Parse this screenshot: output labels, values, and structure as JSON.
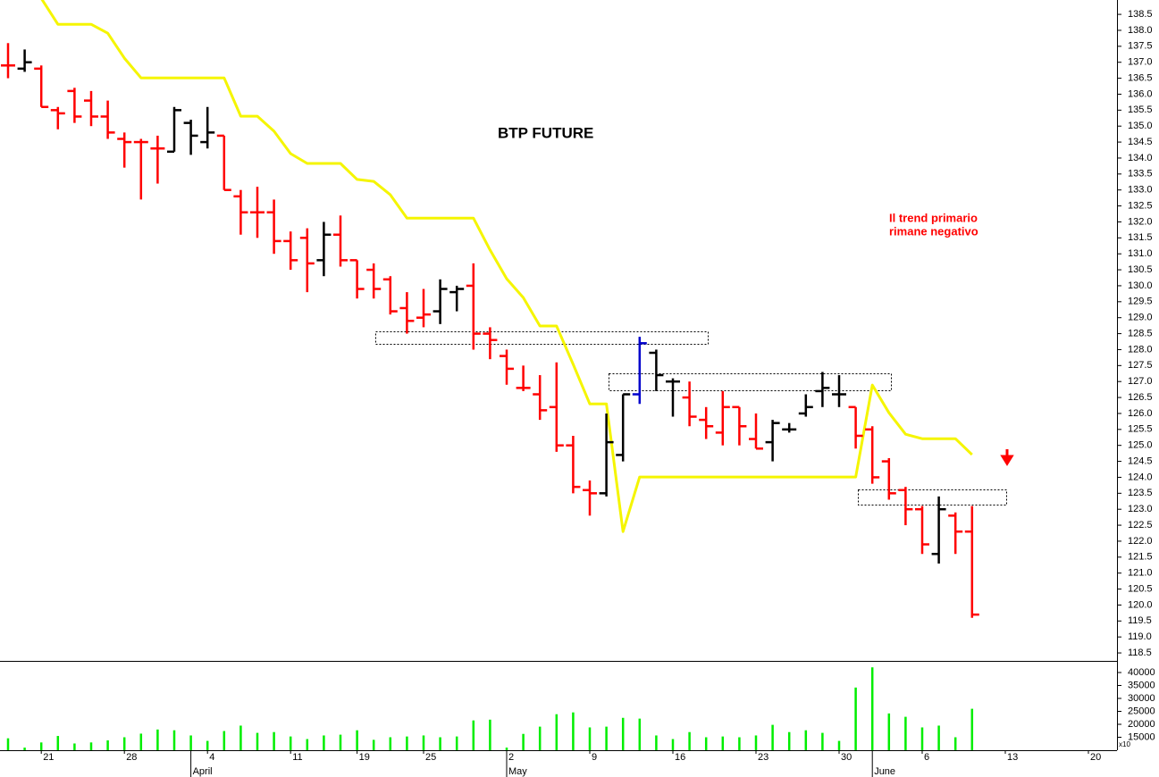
{
  "chart_data": [
    {
      "type": "ohlc",
      "title": "BTP FUTURE",
      "annotation": [
        "Il trend primario",
        "rimane negativo"
      ],
      "ylim": [
        118.25,
        138.95
      ],
      "yticks": [
        138.5,
        {
          "value": 138,
          "label": "138.0"
        },
        137.5,
        {
          "value": 137,
          "label": "137.0"
        },
        136.5,
        {
          "value": 136,
          "label": "136.0"
        },
        135.5,
        {
          "value": 135,
          "label": "135.0"
        },
        134.5,
        {
          "value": 134,
          "label": "134.0"
        },
        133.5,
        {
          "value": 133,
          "label": "133.0"
        },
        132.5,
        {
          "value": 132,
          "label": "132.0"
        },
        131.5,
        {
          "value": 131,
          "label": "131.0"
        },
        130.5,
        {
          "value": 130,
          "label": "130.0"
        },
        129.5,
        {
          "value": 129,
          "label": "129.0"
        },
        128.5,
        {
          "value": 128,
          "label": "128.0"
        },
        127.5,
        {
          "value": 127,
          "label": "127.0"
        },
        126.5,
        {
          "value": 126,
          "label": "126.0"
        },
        125.5,
        {
          "value": 125,
          "label": "125.0"
        },
        124.5,
        {
          "value": 124,
          "label": "124.0"
        },
        123.5,
        {
          "value": 123,
          "label": "123.0"
        },
        122.5,
        {
          "value": 122,
          "label": "122.0"
        },
        121.5,
        {
          "value": 121,
          "label": "121.0"
        },
        120.5,
        {
          "value": 120,
          "label": "120.0"
        },
        119.5,
        {
          "value": 119,
          "label": "119.0"
        },
        118.5
      ],
      "open": [
        136.9,
        136.8,
        136.8,
        135.5,
        136.1,
        135.8,
        135.3,
        134.6,
        134.5,
        134.3,
        134.2,
        135.1,
        134.5,
        134.7,
        132.8,
        132.3,
        132.3,
        131.4,
        131.5,
        130.8,
        131.6,
        130.8,
        130.5,
        130.2,
        129.3,
        129.0,
        129.2,
        129.8,
        130.0,
        128.5,
        127.8,
        126.8,
        126.6,
        126.2,
        125.0,
        123.6,
        123.5,
        124.7,
        126.6,
        127.9,
        127.0,
        126.5,
        125.8,
        125.4,
        126.2,
        125.2,
        125.1,
        125.5,
        126.0,
        126.7,
        126.6,
        126.2,
        125.5,
        124.5,
        123.6,
        123.0,
        121.6,
        122.8,
        122.3
      ],
      "high": [
        137.6,
        137.4,
        136.9,
        135.6,
        136.2,
        136.1,
        135.8,
        134.8,
        134.6,
        134.7,
        135.6,
        135.2,
        135.6,
        134.7,
        133.0,
        133.1,
        132.7,
        131.7,
        131.8,
        132.0,
        132.2,
        130.8,
        130.7,
        130.3,
        129.8,
        129.9,
        130.2,
        130.0,
        130.7,
        128.7,
        128.0,
        127.5,
        127.2,
        127.6,
        125.3,
        123.9,
        126.0,
        126.6,
        128.4,
        128.0,
        127.1,
        127.0,
        126.2,
        126.7,
        126.2,
        126.0,
        125.8,
        125.7,
        126.6,
        127.3,
        127.2,
        126.2,
        125.6,
        124.6,
        123.7,
        123.1,
        123.4,
        122.9,
        123.1
      ],
      "low": [
        136.5,
        136.7,
        135.6,
        134.9,
        135.1,
        135.0,
        134.6,
        133.7,
        132.7,
        133.2,
        134.2,
        134.1,
        134.3,
        133.0,
        131.6,
        131.5,
        131.0,
        130.5,
        129.8,
        130.3,
        130.6,
        129.6,
        129.6,
        129.1,
        128.5,
        128.7,
        128.8,
        129.2,
        128.0,
        127.7,
        126.9,
        126.7,
        125.8,
        124.8,
        123.5,
        122.8,
        123.4,
        124.5,
        126.3,
        126.7,
        125.9,
        125.6,
        125.2,
        125.0,
        125.0,
        124.9,
        124.5,
        125.4,
        125.9,
        126.2,
        126.2,
        124.9,
        123.8,
        123.3,
        122.5,
        121.6,
        121.3,
        121.6,
        119.6
      ],
      "close": [
        136.9,
        137.0,
        135.6,
        135.4,
        135.3,
        135.3,
        134.8,
        134.5,
        134.5,
        134.3,
        135.5,
        134.7,
        134.8,
        133.0,
        132.3,
        132.3,
        131.4,
        130.8,
        130.7,
        131.6,
        130.8,
        129.9,
        129.9,
        129.2,
        128.9,
        129.1,
        129.9,
        129.9,
        128.5,
        128.3,
        127.4,
        126.8,
        126.1,
        125.0,
        123.7,
        123.5,
        125.1,
        126.6,
        128.2,
        127.2,
        127.0,
        125.9,
        125.6,
        126.2,
        125.6,
        124.9,
        125.7,
        125.5,
        126.2,
        126.8,
        126.6,
        125.3,
        124.0,
        123.5,
        123.0,
        121.9,
        123.0,
        122.3,
        119.7
      ],
      "colors": [
        "#ff0000",
        "#000000",
        "#ff0000",
        "#ff0000",
        "#ff0000",
        "#ff0000",
        "#ff0000",
        "#ff0000",
        "#ff0000",
        "#ff0000",
        "#000000",
        "#000000",
        "#000000",
        "#ff0000",
        "#ff0000",
        "#ff0000",
        "#ff0000",
        "#ff0000",
        "#ff0000",
        "#000000",
        "#ff0000",
        "#ff0000",
        "#ff0000",
        "#ff0000",
        "#ff0000",
        "#ff0000",
        "#000000",
        "#000000",
        "#ff0000",
        "#ff0000",
        "#ff0000",
        "#ff0000",
        "#ff0000",
        "#ff0000",
        "#ff0000",
        "#ff0000",
        "#000000",
        "#000000",
        "#0000cc",
        "#000000",
        "#000000",
        "#ff0000",
        "#ff0000",
        "#ff0000",
        "#ff0000",
        "#ff0000",
        "#000000",
        "#000000",
        "#000000",
        "#000000",
        "#000000",
        "#ff0000",
        "#ff0000",
        "#ff0000",
        "#ff0000",
        "#ff0000",
        "#000000",
        "#ff0000",
        "#ff0000"
      ],
      "stop_line": {
        "color": "#f5f500",
        "values": [
          null,
          null,
          139.0,
          138.19,
          138.19,
          138.19,
          137.91,
          137.13,
          136.51,
          136.51,
          136.51,
          136.51,
          136.51,
          136.51,
          135.31,
          135.31,
          134.84,
          134.14,
          133.83,
          133.83,
          133.83,
          133.33,
          133.27,
          132.85,
          132.12,
          132.12,
          132.12,
          132.12,
          132.12,
          131.12,
          130.22,
          129.63,
          128.74,
          128.74,
          127.54,
          126.3,
          126.3,
          122.3,
          124.01,
          124.01,
          124.01,
          124.01,
          124.01,
          124.01,
          124.01,
          124.01,
          124.01,
          124.01,
          124.01,
          124.01,
          124.01,
          124.01,
          126.89,
          126.02,
          125.35,
          125.21,
          125.21,
          125.21,
          124.71
        ]
      }
    },
    {
      "type": "bar",
      "color": "#00ee00",
      "ylim": [
        10000,
        43800
      ],
      "yticks": [
        40000,
        35000,
        30000,
        25000,
        20000,
        15000
      ],
      "unit_label": "x10",
      "categories": [
        null,
        null,
        "21",
        null,
        null,
        null,
        null,
        "28",
        null,
        null,
        null,
        null,
        "4",
        null,
        null,
        null,
        null,
        "11",
        null,
        null,
        null,
        "19",
        null,
        null,
        null,
        "25",
        null,
        null,
        null,
        null,
        "2",
        null,
        null,
        null,
        null,
        "9",
        null,
        null,
        null,
        null,
        "16",
        null,
        null,
        null,
        null,
        "23",
        null,
        null,
        null,
        null,
        "30",
        null,
        null,
        null,
        null,
        "6",
        null,
        null,
        null,
        null,
        "13",
        null,
        null,
        null,
        null,
        "20",
        null
      ],
      "months": [
        null,
        null,
        null,
        null,
        null,
        null,
        null,
        null,
        null,
        null,
        null,
        "April",
        null,
        null,
        null,
        null,
        null,
        null,
        null,
        null,
        null,
        null,
        null,
        null,
        null,
        null,
        null,
        null,
        null,
        null,
        "May",
        null,
        null,
        null,
        null,
        null,
        null,
        null,
        null,
        null,
        null,
        null,
        null,
        null,
        null,
        null,
        null,
        null,
        null,
        null,
        null,
        null,
        "June",
        null,
        null,
        null,
        null,
        null,
        null,
        null,
        null,
        null,
        null,
        null,
        null,
        null,
        null
      ],
      "values": [
        14600,
        11000,
        13000,
        15500,
        12600,
        13000,
        13800,
        15000,
        16400,
        18000,
        17700,
        15700,
        13600,
        17400,
        19500,
        16700,
        17000,
        15300,
        14300,
        15700,
        16000,
        17700,
        14000,
        15000,
        15300,
        15700,
        15000,
        15300,
        21500,
        21800,
        11000,
        16300,
        19100,
        23900,
        24600,
        18800,
        19100,
        22500,
        22200,
        15700,
        14300,
        17000,
        15000,
        15300,
        15000,
        15700,
        19800,
        17000,
        17700,
        16700,
        13600,
        34200,
        42000,
        24200,
        22900,
        18800,
        19500,
        15000,
        26000,
        null,
        null,
        null,
        null,
        null,
        null,
        null,
        null
      ]
    }
  ]
}
